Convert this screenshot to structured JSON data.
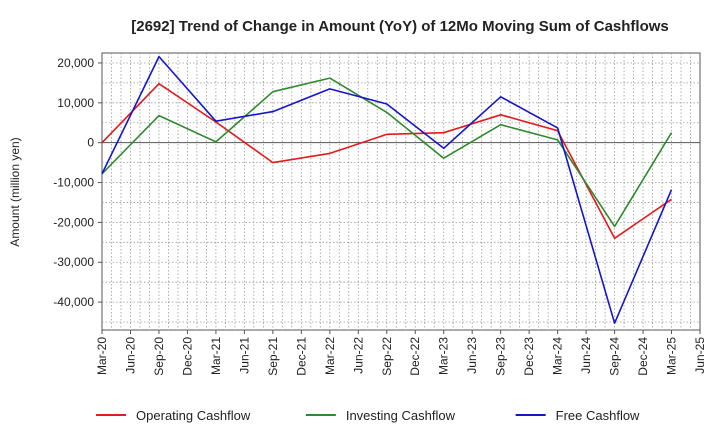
{
  "chart_data": {
    "type": "line",
    "title": "[2692]  Trend of Change in Amount (YoY) of 12Mo Moving Sum of Cashflows",
    "xlabel": "",
    "ylabel": "Amount (million yen)",
    "ylim": [
      -47000,
      22500
    ],
    "yticks": [
      20000,
      10000,
      0,
      -10000,
      -20000,
      -30000,
      -40000
    ],
    "ytick_labels": [
      "20,000",
      "10,000",
      "0",
      "-10,000",
      "-20,000",
      "-30,000",
      "-40,000"
    ],
    "categories": [
      "Mar-20",
      "Jun-20",
      "Sep-20",
      "Dec-20",
      "Mar-21",
      "Jun-21",
      "Sep-21",
      "Dec-21",
      "Mar-22",
      "Jun-22",
      "Sep-22",
      "Dec-22",
      "Mar-23",
      "Jun-23",
      "Sep-23",
      "Dec-23",
      "Mar-24",
      "Jun-24",
      "Sep-24",
      "Dec-24",
      "Mar-25",
      "Jun-25"
    ],
    "series": [
      {
        "name": "Operating Cashflow",
        "color": "#e41a1c",
        "points": [
          [
            0,
            0
          ],
          [
            2,
            14800
          ],
          [
            4,
            5200
          ],
          [
            6,
            -5000
          ],
          [
            8,
            -2700
          ],
          [
            10,
            2100
          ],
          [
            12,
            2500
          ],
          [
            14,
            7000
          ],
          [
            16,
            3000
          ],
          [
            18,
            -24000
          ],
          [
            20,
            -14200
          ]
        ]
      },
      {
        "name": "Investing Cashflow",
        "color": "#2e8b2e",
        "points": [
          [
            0,
            -7800
          ],
          [
            2,
            6800
          ],
          [
            4,
            200
          ],
          [
            6,
            12800
          ],
          [
            8,
            16200
          ],
          [
            10,
            7600
          ],
          [
            12,
            -3900
          ],
          [
            14,
            4500
          ],
          [
            16,
            700
          ],
          [
            18,
            -21000
          ],
          [
            20,
            2500
          ]
        ]
      },
      {
        "name": "Free Cashflow",
        "color": "#1515cc",
        "points": [
          [
            0,
            -7800
          ],
          [
            2,
            21600
          ],
          [
            4,
            5400
          ],
          [
            6,
            7800
          ],
          [
            8,
            13500
          ],
          [
            10,
            9700
          ],
          [
            12,
            -1400
          ],
          [
            14,
            11500
          ],
          [
            16,
            3700
          ],
          [
            18,
            -45300
          ],
          [
            20,
            -11800
          ]
        ]
      }
    ],
    "grid": true,
    "legend_position": "bottom"
  }
}
